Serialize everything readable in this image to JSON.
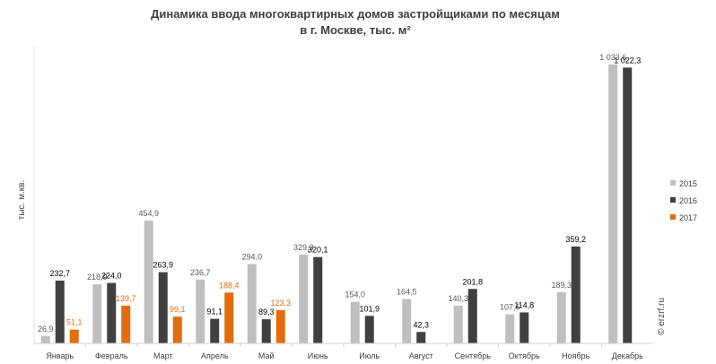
{
  "chart_data": {
    "type": "bar",
    "title": "Динамика ввода многоквартирных домов застройщиками по месяцам",
    "subtitle": "в г. Москве, тыс. м²",
    "ylabel": "тыс. м.кв.",
    "xlabel": "",
    "ylim": [
      0,
      1100
    ],
    "grid": false,
    "legend_position": "right",
    "categories": [
      "Январь",
      "Февраль",
      "Март",
      "Апрель",
      "Май",
      "Июнь",
      "Июль",
      "Август",
      "Сентябрь",
      "Октябрь",
      "Ноябрь",
      "Декабрь"
    ],
    "series": [
      {
        "name": "2015",
        "color": "#bfbfbf",
        "label_color": "#595959",
        "values": [
          26.9,
          218.9,
          454.9,
          236.7,
          294.0,
          329.3,
          154.0,
          164.5,
          140.3,
          107.6,
          189.3,
          1033.6
        ],
        "labels": [
          "26,9",
          "218,9",
          "454,9",
          "236,7",
          "294,0",
          "329,3",
          "154,0",
          "164,5",
          "140,3",
          "107,6",
          "189,3",
          "1 033,6"
        ]
      },
      {
        "name": "2016",
        "color": "#404040",
        "label_color": "#000000",
        "values": [
          232.7,
          224.0,
          263.9,
          91.1,
          89.3,
          320.1,
          101.9,
          42.3,
          201.8,
          114.8,
          359.2,
          1022.3
        ],
        "labels": [
          "232,7",
          "224,0",
          "263,9",
          "91,1",
          "89,3",
          "320,1",
          "101,9",
          "42,3",
          "201,8",
          "114,8",
          "359,2",
          "1 022,3"
        ]
      },
      {
        "name": "2017",
        "color": "#e46c0a",
        "label_color": "#e46c0a",
        "values": [
          51.1,
          139.7,
          99.1,
          188.4,
          123.3,
          null,
          null,
          null,
          null,
          null,
          null,
          null
        ],
        "labels": [
          "51,1",
          "139,7",
          "99,1",
          "188,4",
          "123,3",
          null,
          null,
          null,
          null,
          null,
          null,
          null
        ]
      }
    ]
  },
  "watermark": "© erzrf.ru"
}
